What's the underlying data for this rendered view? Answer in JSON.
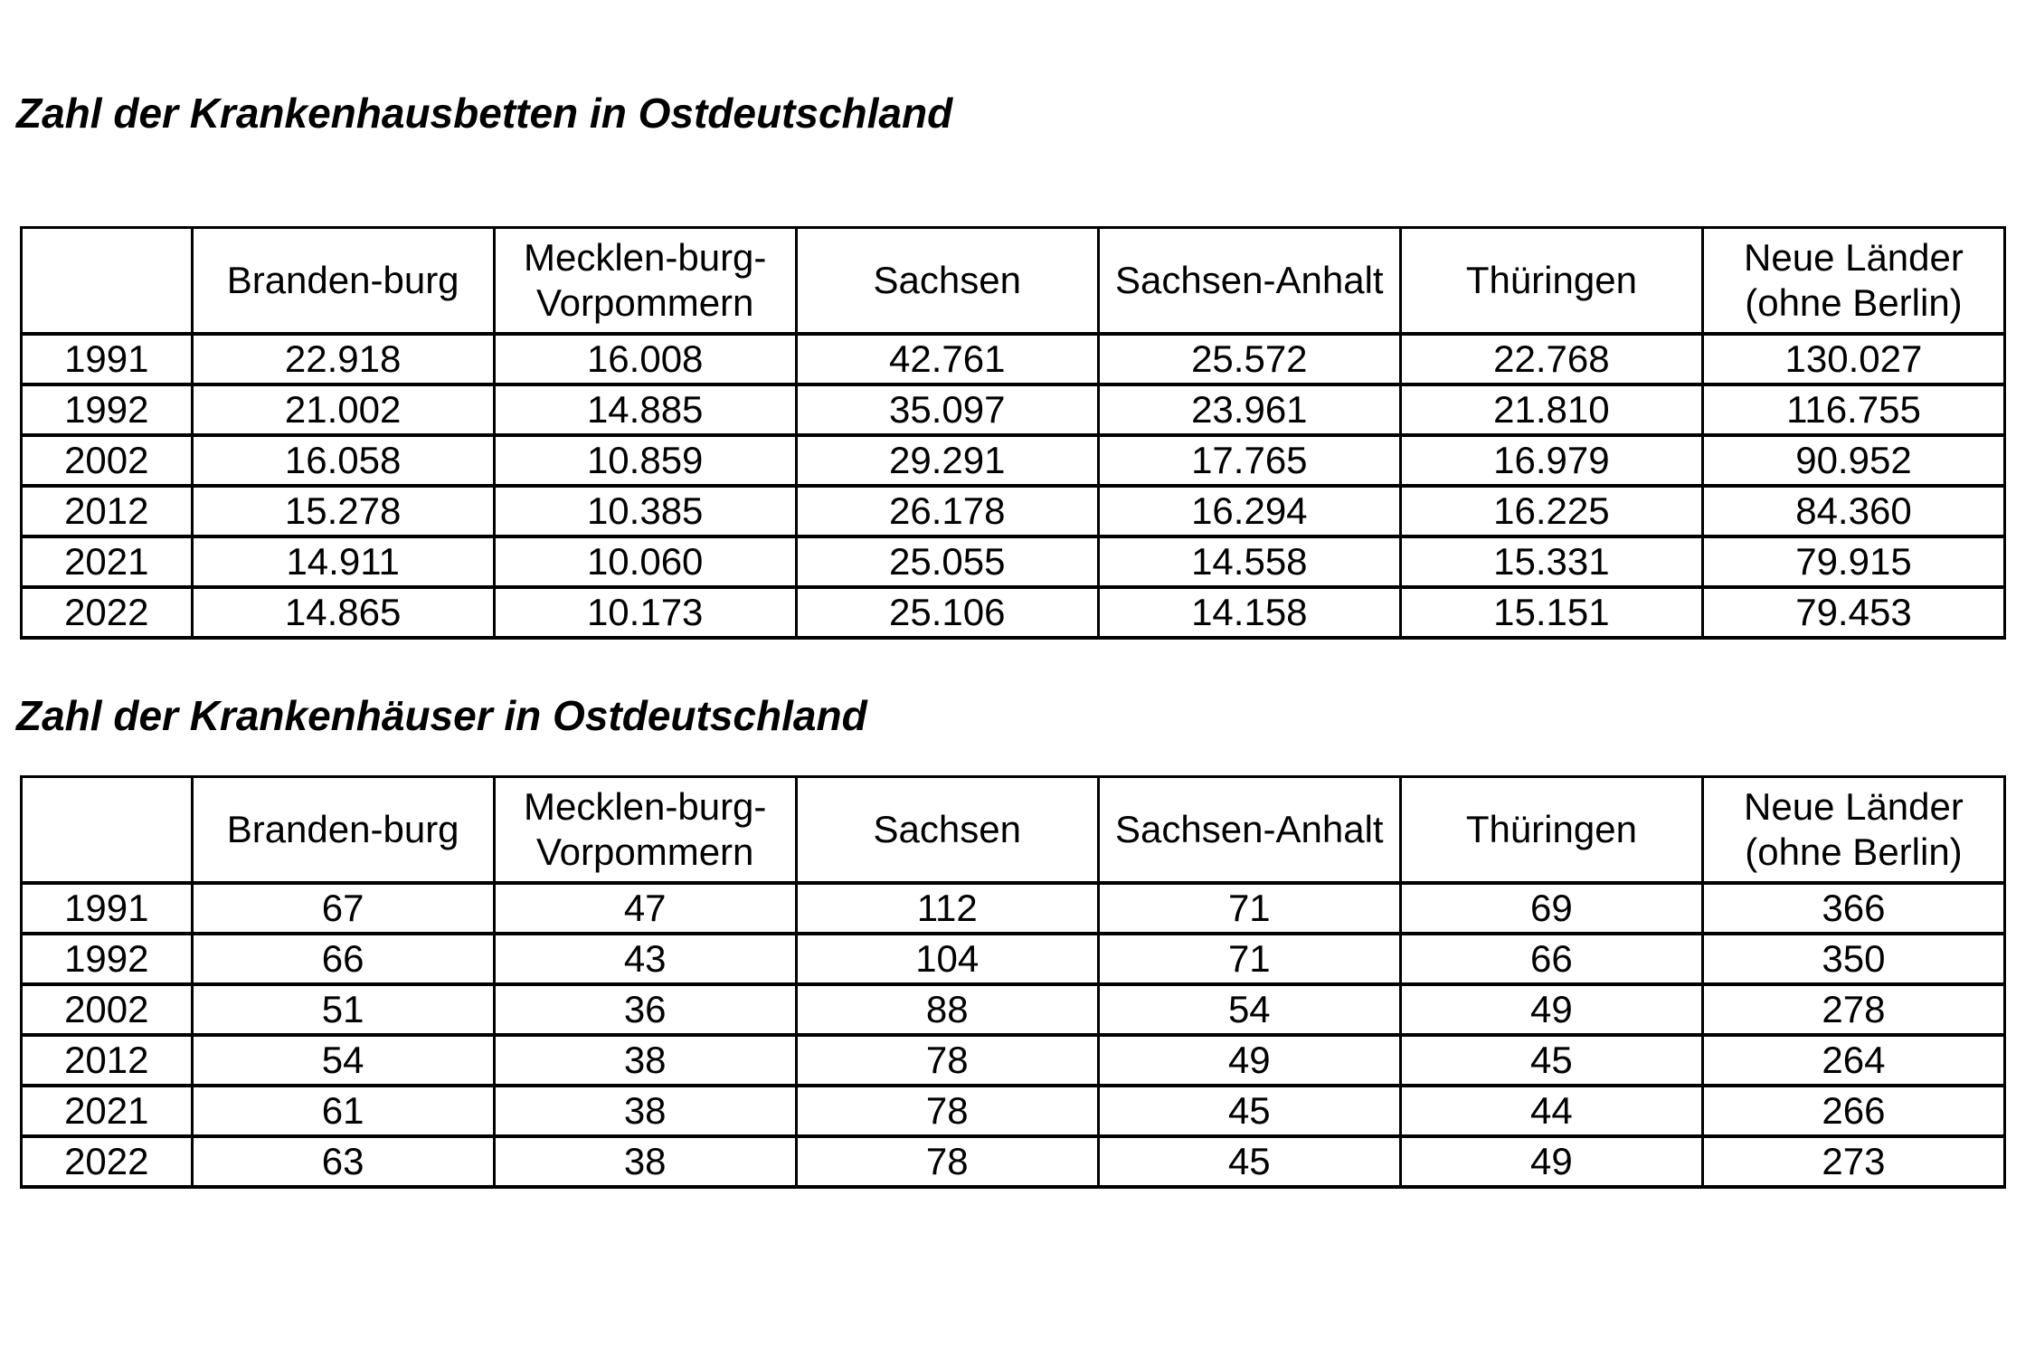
{
  "colors": {
    "background": "#ffffff",
    "text": "#000000",
    "table_border": "#000000"
  },
  "tables": [
    {
      "title": "Zahl der Krankenhausbetten in Ostdeutschland",
      "columns": [
        "",
        "Branden-burg",
        "Mecklen-burg-\nVorpommern",
        "Sachsen",
        "Sachsen-Anhalt",
        "Thüringen",
        "Neue Länder\n(ohne Berlin)"
      ],
      "rows": [
        {
          "year": "1991",
          "values": [
            "22.918",
            "16.008",
            "42.761",
            "25.572",
            "22.768",
            "130.027"
          ]
        },
        {
          "year": "1992",
          "values": [
            "21.002",
            "14.885",
            "35.097",
            "23.961",
            "21.810",
            "116.755"
          ]
        },
        {
          "year": "2002",
          "values": [
            "16.058",
            "10.859",
            "29.291",
            "17.765",
            "16.979",
            "90.952"
          ]
        },
        {
          "year": "2012",
          "values": [
            "15.278",
            "10.385",
            "26.178",
            "16.294",
            "16.225",
            "84.360"
          ]
        },
        {
          "year": "2021",
          "values": [
            "14.911",
            "10.060",
            "25.055",
            "14.558",
            "15.331",
            "79.915"
          ]
        },
        {
          "year": "2022",
          "values": [
            "14.865",
            "10.173",
            "25.106",
            "14.158",
            "15.151",
            "79.453"
          ]
        }
      ]
    },
    {
      "title": "Zahl der Krankenhäuser in Ostdeutschland",
      "columns": [
        "",
        "Branden-burg",
        "Mecklen-burg-\nVorpommern",
        "Sachsen",
        "Sachsen-Anhalt",
        "Thüringen",
        "Neue Länder\n(ohne Berlin)"
      ],
      "rows": [
        {
          "year": "1991",
          "values": [
            "67",
            "47",
            "112",
            "71",
            "69",
            "366"
          ]
        },
        {
          "year": "1992",
          "values": [
            "66",
            "43",
            "104",
            "71",
            "66",
            "350"
          ]
        },
        {
          "year": "2002",
          "values": [
            "51",
            "36",
            "88",
            "54",
            "49",
            "278"
          ]
        },
        {
          "year": "2012",
          "values": [
            "54",
            "38",
            "78",
            "49",
            "45",
            "264"
          ]
        },
        {
          "year": "2021",
          "values": [
            "61",
            "38",
            "78",
            "45",
            "44",
            "266"
          ]
        },
        {
          "year": "2022",
          "values": [
            "63",
            "38",
            "78",
            "45",
            "49",
            "273"
          ]
        }
      ]
    }
  ]
}
